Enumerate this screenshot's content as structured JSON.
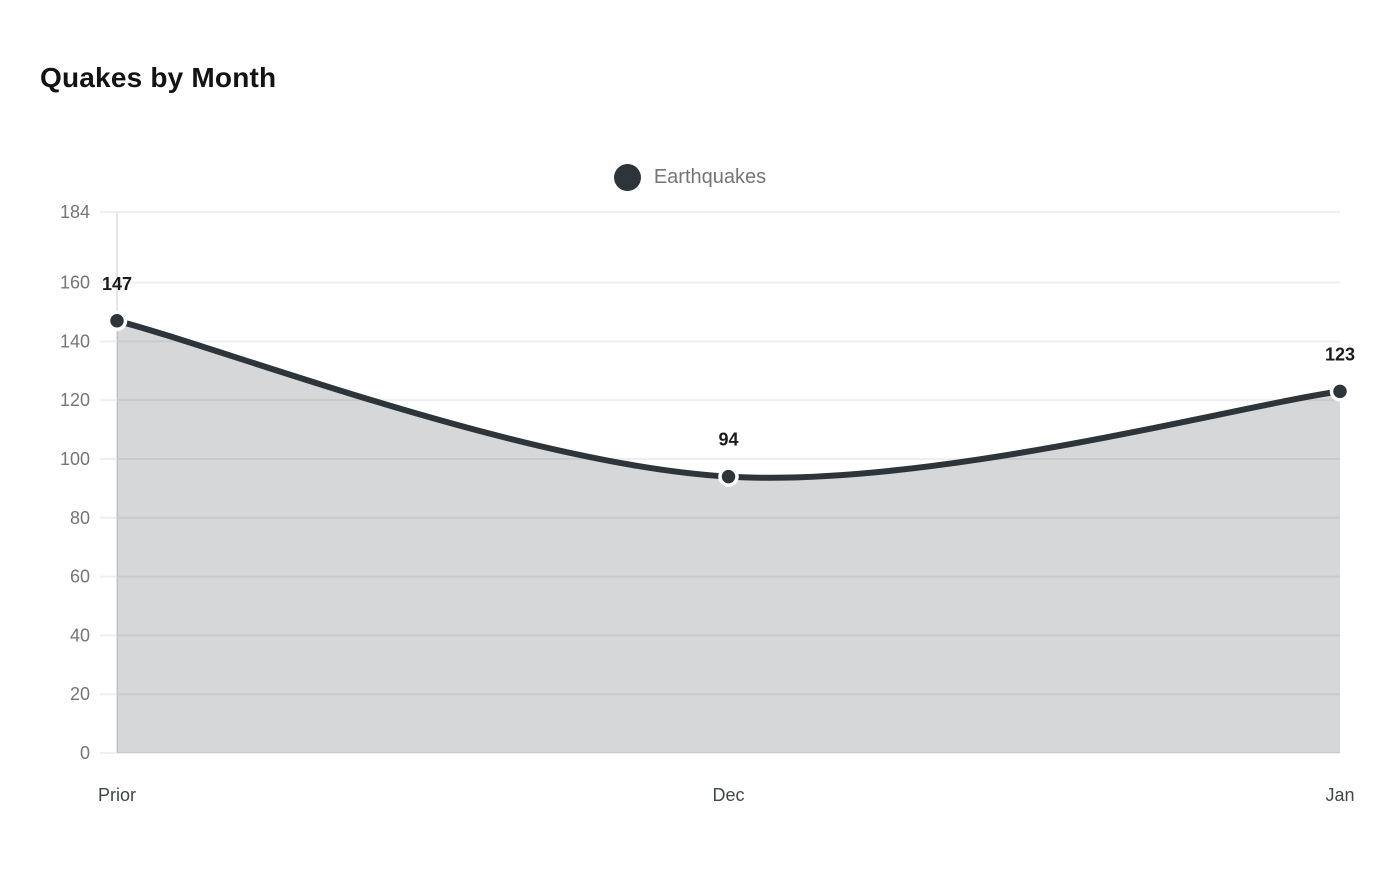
{
  "chart_data": {
    "type": "area",
    "title": "Quakes by Month",
    "legend": [
      {
        "label": "Earthquakes",
        "color": "#2d353b"
      }
    ],
    "legend_position": "top-center",
    "categories": [
      "Prior",
      "Dec",
      "Jan"
    ],
    "series": [
      {
        "name": "Earthquakes",
        "values": [
          147,
          94,
          123
        ]
      }
    ],
    "data_labels": [
      "147",
      "94",
      "123"
    ],
    "yticks": [
      0,
      20,
      40,
      60,
      80,
      100,
      120,
      140,
      160,
      184
    ],
    "ylim": [
      0,
      184
    ],
    "xlabel": "",
    "ylabel": "",
    "grid": "horizontal",
    "colors": {
      "line": "#2d353b",
      "area_fill": "rgba(45,53,59,0.2)",
      "marker_fill": "#2d353b",
      "marker_ring": "#ffffff",
      "gridline": "#efefef",
      "vertical_gridline": "#e5e5e5",
      "y_tick_text": "#757575",
      "x_label_text": "#3f474c",
      "data_label_text": "#1b1b1b",
      "title_text": "#131313",
      "legend_text": "#757575",
      "background": "#ffffff"
    }
  }
}
